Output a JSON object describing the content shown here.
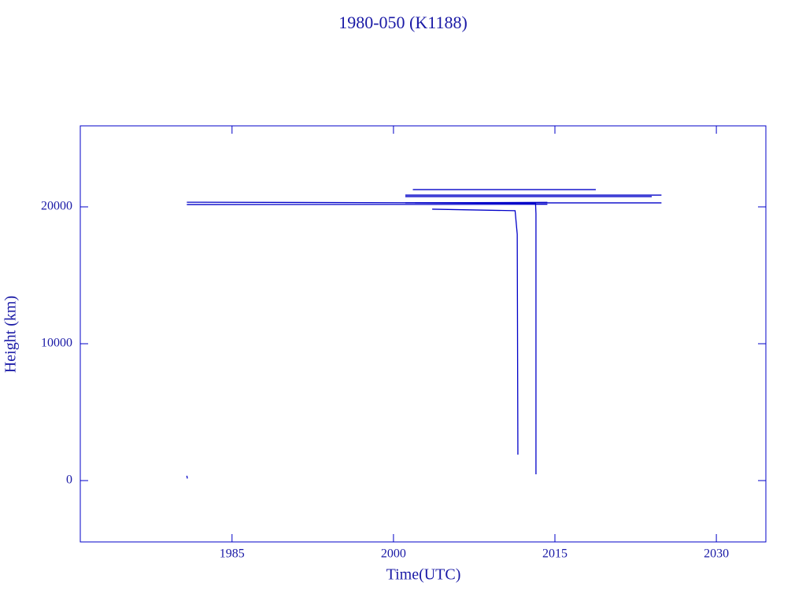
{
  "chart_data": {
    "type": "line",
    "title": "1980-050 (K1188)",
    "xlabel": "Time(UTC)",
    "ylabel": "Height (km)",
    "color": "#0000c8",
    "xlim": [
      1970.9,
      2034.6
    ],
    "xticks": [
      1985,
      2000,
      2015,
      2030
    ],
    "ylim": [
      -4483,
      25920
    ],
    "yticks": [
      0,
      10000,
      20000
    ],
    "series": [
      {
        "x": [
          1980.8,
          2003.0,
          2014.3
        ],
        "values": [
          20170,
          20180,
          20190
        ]
      },
      {
        "x": [
          1980.8,
          2003.0,
          2014.3
        ],
        "values": [
          20340,
          20300,
          20330
        ]
      },
      {
        "x": [
          2003.6,
          2011.3,
          2011.5,
          2011.56
        ],
        "values": [
          19830,
          19720,
          18000,
          1900
        ]
      },
      {
        "x": [
          2002.0,
          2013.2,
          2013.24,
          2013.24
        ],
        "values": [
          20290,
          20250,
          19500,
          460
        ]
      },
      {
        "x": [
          2001.8,
          2018.8
        ],
        "values": [
          21260,
          21260
        ]
      },
      {
        "x": [
          2001.1,
          2024.9
        ],
        "values": [
          20860,
          20860
        ]
      },
      {
        "x": [
          2001.1,
          2024.0
        ],
        "values": [
          20750,
          20750
        ]
      },
      {
        "x": [
          2001.1,
          2024.9
        ],
        "values": [
          20290,
          20290
        ]
      },
      {
        "x": [
          1980.8,
          1980.85
        ],
        "values": [
          350,
          150
        ]
      }
    ]
  }
}
